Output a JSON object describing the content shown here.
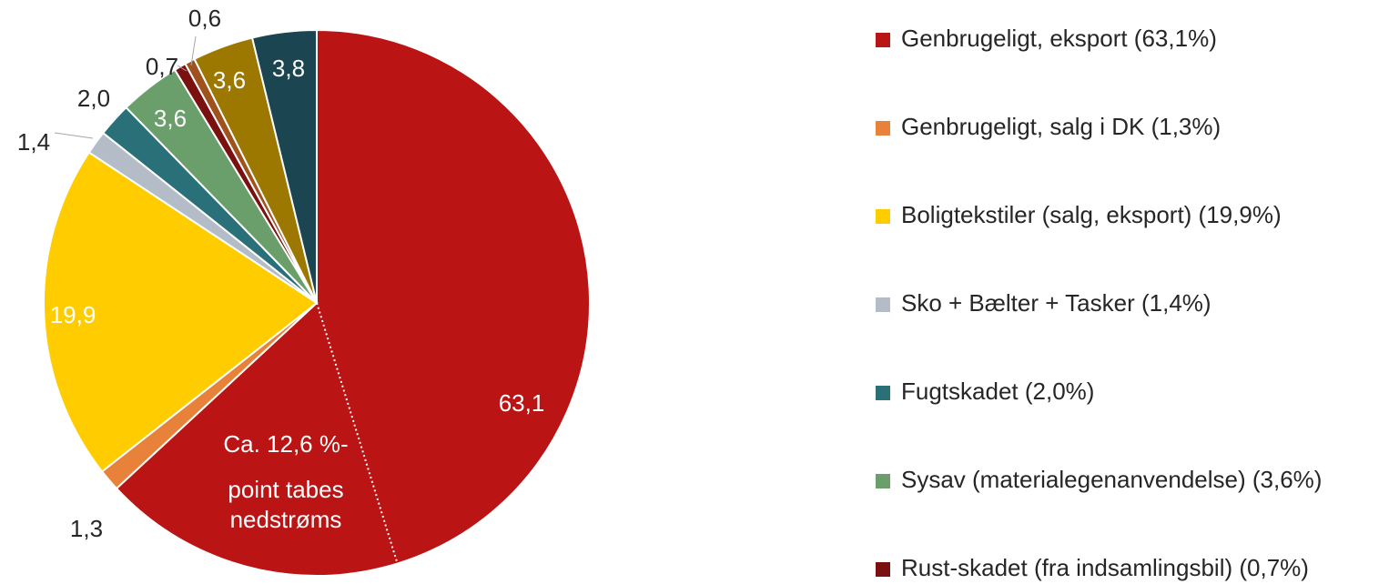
{
  "chart_data": {
    "type": "pie",
    "categories": [
      "Genbrugeligt, eksport (63,1%)",
      "Genbrugeligt, salg i DK (1,3%)",
      "Boligtekstiler (salg, eksport) (19,9%)",
      "Sko + Bælter + Tasker (1,4%)",
      "Fugtskadet (2,0%)",
      "Sysav (materialegenanvendelse) (3,6%)",
      "Rust-skadet (fra indsamlingsbil) (0,7%)",
      null,
      null,
      null
    ],
    "values": [
      63.1,
      1.3,
      19.9,
      1.4,
      2.0,
      3.6,
      0.7,
      0.6,
      3.6,
      3.8
    ],
    "value_labels": [
      "63,1",
      "1,3",
      "19,9",
      "1,4",
      "2,0",
      "3,6",
      "0,7",
      "0,6",
      "3,6",
      "3,8"
    ],
    "colors": [
      "#BA1414",
      "#E8823A",
      "#FFCC00",
      "#B4BCC8",
      "#2A7079",
      "#6A9E6A",
      "#7B1010",
      "#A0521E",
      "#9C7800",
      "#1B4550"
    ],
    "annotation": [
      "Ca. 12,6 %-",
      "point tabes",
      "nedstrøms"
    ],
    "legend": "right"
  }
}
